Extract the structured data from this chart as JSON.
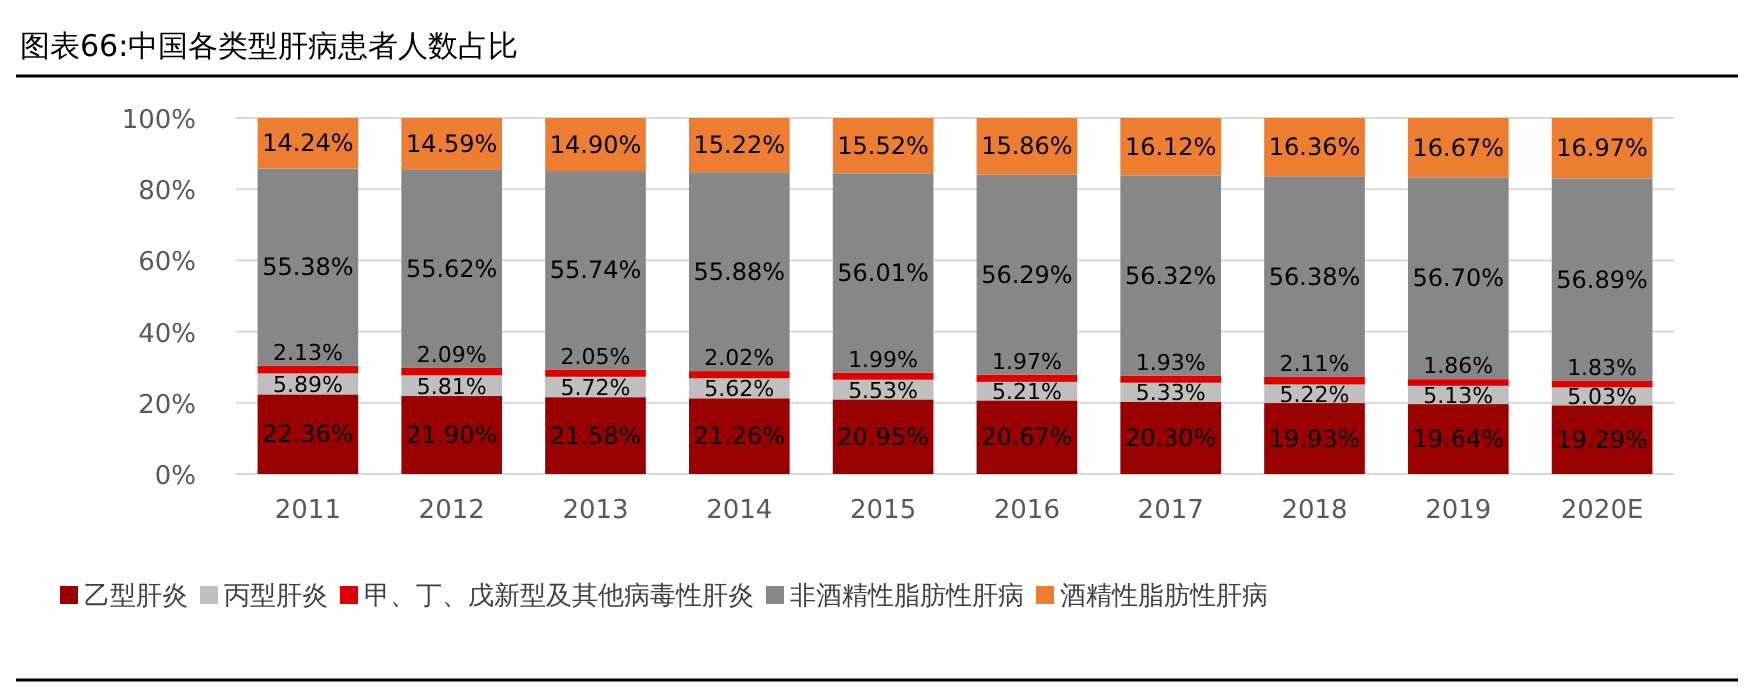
{
  "chart_data": {
    "type": "bar",
    "stacked": true,
    "title": "图表66:中国各类型肝病患者人数占比",
    "categories": [
      "2011",
      "2012",
      "2013",
      "2014",
      "2015",
      "2016",
      "2017",
      "2018",
      "2019",
      "2020E"
    ],
    "series": [
      {
        "name": "乙型肝炎",
        "color": "#990000",
        "values": [
          22.36,
          21.9,
          21.58,
          21.26,
          20.95,
          20.67,
          20.3,
          19.93,
          19.64,
          19.29
        ],
        "value_labels": [
          "22.36%",
          "21.90%",
          "21.58%",
          "21.26%",
          "20.95%",
          "20.67%",
          "20.30%",
          "19.93%",
          "19.64%",
          "19.29%"
        ]
      },
      {
        "name": "丙型肝炎",
        "color": "#bfbfbf",
        "values": [
          5.89,
          5.81,
          5.72,
          5.62,
          5.53,
          5.21,
          5.33,
          5.22,
          5.13,
          5.03
        ],
        "value_labels": [
          "5.89%",
          "5.81%",
          "5.72%",
          "5.62%",
          "5.53%",
          "5.21%",
          "5.33%",
          "5.22%",
          "5.13%",
          "5.03%"
        ]
      },
      {
        "name": "甲、丁、戊新型及其他病毒性肝炎",
        "color": "#e00000",
        "values": [
          2.13,
          2.09,
          2.05,
          2.02,
          1.99,
          1.97,
          1.93,
          2.11,
          1.86,
          1.83
        ],
        "value_labels": [
          "2.13%",
          "2.09%",
          "2.05%",
          "2.02%",
          "1.99%",
          "1.97%",
          "1.93%",
          "2.11%",
          "1.86%",
          "1.83%"
        ]
      },
      {
        "name": "非酒精性脂肪性肝病",
        "color": "#878787",
        "values": [
          55.38,
          55.62,
          55.74,
          55.88,
          56.01,
          56.29,
          56.32,
          56.38,
          56.7,
          56.89
        ],
        "value_labels": [
          "55.38%",
          "55.62%",
          "55.74%",
          "55.88%",
          "56.01%",
          "56.29%",
          "56.32%",
          "56.38%",
          "56.70%",
          "56.89%"
        ]
      },
      {
        "name": "酒精性脂肪性肝病",
        "color": "#ed7d31",
        "values": [
          14.24,
          14.59,
          14.9,
          15.22,
          15.52,
          15.86,
          16.12,
          16.36,
          16.67,
          16.97
        ],
        "value_labels": [
          "14.24%",
          "14.59%",
          "14.90%",
          "15.22%",
          "15.52%",
          "15.86%",
          "16.12%",
          "16.36%",
          "16.67%",
          "16.97%"
        ]
      }
    ],
    "ylim": [
      0,
      100
    ],
    "yticks": [
      {
        "value": 0,
        "label": "0%"
      },
      {
        "value": 20,
        "label": "20%"
      },
      {
        "value": 40,
        "label": "40%"
      },
      {
        "value": 60,
        "label": "60%"
      },
      {
        "value": 80,
        "label": "80%"
      },
      {
        "value": 100,
        "label": "100%"
      }
    ],
    "grid": "y",
    "legend": "bottom"
  }
}
